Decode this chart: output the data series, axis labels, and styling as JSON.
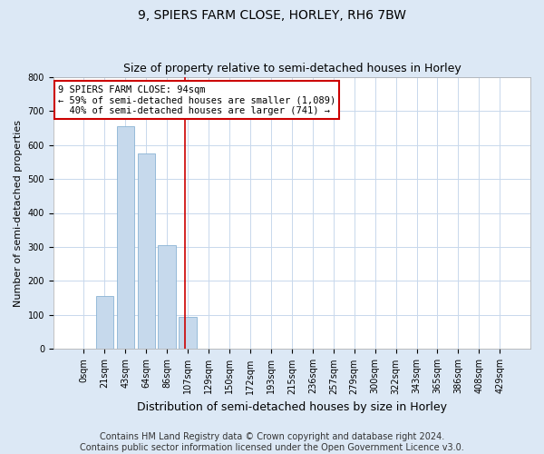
{
  "title": "9, SPIERS FARM CLOSE, HORLEY, RH6 7BW",
  "subtitle": "Size of property relative to semi-detached houses in Horley",
  "xlabel": "Distribution of semi-detached houses by size in Horley",
  "ylabel": "Number of semi-detached properties",
  "footnote": "Contains HM Land Registry data © Crown copyright and database right 2024.\nContains public sector information licensed under the Open Government Licence v3.0.",
  "bar_labels": [
    "0sqm",
    "21sqm",
    "43sqm",
    "64sqm",
    "86sqm",
    "107sqm",
    "129sqm",
    "150sqm",
    "172sqm",
    "193sqm",
    "215sqm",
    "236sqm",
    "257sqm",
    "279sqm",
    "300sqm",
    "322sqm",
    "343sqm",
    "365sqm",
    "386sqm",
    "408sqm",
    "429sqm"
  ],
  "bar_values": [
    0,
    155,
    655,
    575,
    305,
    95,
    0,
    0,
    0,
    0,
    0,
    0,
    0,
    0,
    0,
    0,
    0,
    0,
    0,
    0,
    0
  ],
  "bar_color": "#c6d9ec",
  "bar_edge_color": "#8ab4d4",
  "annotation_text": "9 SPIERS FARM CLOSE: 94sqm\n← 59% of semi-detached houses are smaller (1,089)\n  40% of semi-detached houses are larger (741) →",
  "annotation_box_color": "#ffffff",
  "annotation_box_edge": "#cc0000",
  "vline_color": "#cc0000",
  "vline_bin_index": 4.88,
  "ylim": [
    0,
    800
  ],
  "yticks": [
    0,
    100,
    200,
    300,
    400,
    500,
    600,
    700,
    800
  ],
  "figure_bg": "#dce8f5",
  "axes_bg": "#ffffff",
  "grid_color": "#c8d8ec",
  "title_fontsize": 10,
  "subtitle_fontsize": 9,
  "xlabel_fontsize": 9,
  "ylabel_fontsize": 8,
  "tick_fontsize": 7,
  "footnote_fontsize": 7
}
